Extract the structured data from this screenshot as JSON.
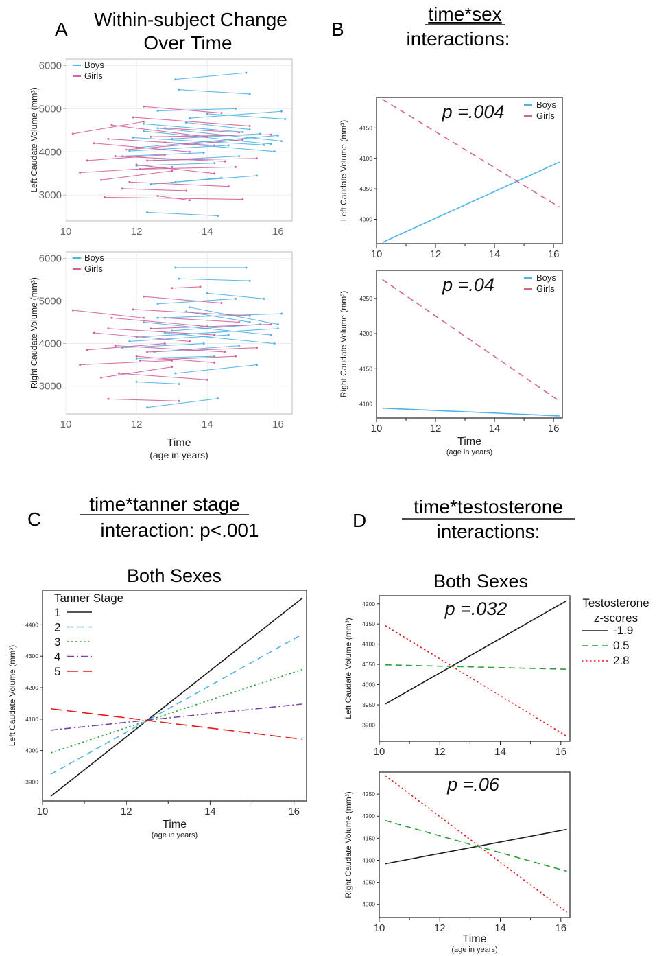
{
  "panels": {
    "A": {
      "letter": "A",
      "title_lines": [
        "Within-subject Change",
        "Over Time"
      ]
    },
    "B": {
      "letter": "B",
      "title_lines": [
        "time*sex",
        "interactions:"
      ]
    },
    "C": {
      "letter": "C",
      "title_lines": [
        "time*tanner stage",
        "interaction: p<.001"
      ],
      "subtitle": "Both Sexes"
    },
    "D": {
      "letter": "D",
      "title_lines": [
        "time*testosterone",
        "interactions:"
      ],
      "subtitle": "Both Sexes"
    }
  },
  "colors": {
    "boys": "#4fb3e8",
    "girls": "#d4629b",
    "black": "#1a1a1a",
    "blue": "#4fb3e8",
    "green": "#2e9e3a",
    "purple": "#7a3fa0",
    "red": "#e31b1b"
  },
  "chart_data": [
    {
      "id": "A-left",
      "type": "line",
      "ylabel": "Left Caudate Volume (mm³)",
      "xlim": [
        10,
        16.4
      ],
      "ylim": [
        2400,
        6150
      ],
      "xticks": [
        10,
        12,
        14,
        16
      ],
      "yticks": [
        3000,
        4000,
        5000,
        6000
      ],
      "legend": {
        "placement": "top-left",
        "entries": [
          "Boys",
          "Girls"
        ]
      },
      "grid": true,
      "series": [
        {
          "name": "Boys",
          "segments": [
            [
              13.1,
              5680,
              15.1,
              5830
            ],
            [
              13.2,
              5440,
              15.2,
              5340
            ],
            [
              12.3,
              2600,
              14.3,
              2520
            ],
            [
              12.4,
              3250,
              14.4,
              3400
            ],
            [
              12.6,
              4950,
              14.8,
              5000
            ],
            [
              13.0,
              4300,
              15.5,
              4420
            ],
            [
              12.0,
              4100,
              16.0,
              4380
            ],
            [
              12.2,
              4480,
              15.8,
              4180
            ],
            [
              11.8,
              4020,
              14.6,
              4150
            ],
            [
              12.6,
              4550,
              16.1,
              4250
            ],
            [
              13.4,
              4680,
              15.2,
              4520
            ],
            [
              11.6,
              3900,
              13.9,
              3980
            ],
            [
              12.8,
              4220,
              15.9,
              4010
            ],
            [
              13.5,
              4780,
              16.1,
              4940
            ],
            [
              12.0,
              3680,
              14.2,
              3740
            ],
            [
              12.5,
              3800,
              14.9,
              3900
            ],
            [
              13.1,
              3300,
              15.4,
              3450
            ],
            [
              12.2,
              4650,
              15.0,
              4460
            ],
            [
              11.9,
              4330,
              15.6,
              4160
            ],
            [
              14.0,
              4880,
              16.2,
              4760
            ]
          ]
        },
        {
          "name": "Girls",
          "segments": [
            [
              10.2,
              4420,
              12.2,
              4700
            ],
            [
              10.4,
              3520,
              13.0,
              3650
            ],
            [
              10.8,
              4200,
              13.5,
              4000
            ],
            [
              11.0,
              3350,
              13.0,
              3560
            ],
            [
              11.1,
              2950,
              15.0,
              2900
            ],
            [
              11.3,
              4620,
              14.0,
              4350
            ],
            [
              11.4,
              3900,
              14.5,
              3780
            ],
            [
              11.6,
              3150,
              13.4,
              3100
            ],
            [
              11.7,
              4050,
              15.0,
              4280
            ],
            [
              11.9,
              4800,
              15.2,
              4600
            ],
            [
              12.0,
              3700,
              14.2,
              3500
            ],
            [
              12.2,
              5050,
              14.4,
              4900
            ],
            [
              12.4,
              4350,
              15.8,
              4400
            ],
            [
              12.6,
              2980,
              13.5,
              2880
            ],
            [
              12.1,
              3600,
              14.8,
              3650
            ],
            [
              11.8,
              3300,
              14.6,
              3200
            ],
            [
              12.3,
              3800,
              15.4,
              3850
            ],
            [
              10.6,
              3800,
              12.8,
              3930
            ],
            [
              11.2,
              4300,
              14.2,
              4150
            ],
            [
              12.8,
              4550,
              14.9,
              4450
            ]
          ]
        }
      ]
    },
    {
      "id": "A-right",
      "type": "line",
      "ylabel": "Right Caudate Volume (mm³)",
      "xlabel": "Time",
      "xlabel2": "(age in years)",
      "xlim": [
        10,
        16.4
      ],
      "ylim": [
        2350,
        6150
      ],
      "xticks": [
        10,
        12,
        14,
        16
      ],
      "yticks": [
        3000,
        4000,
        5000,
        6000
      ],
      "legend": {
        "placement": "top-left",
        "entries": [
          "Boys",
          "Girls"
        ]
      },
      "grid": true,
      "series": [
        {
          "name": "Boys",
          "segments": [
            [
              13.1,
              5780,
              15.1,
              5780
            ],
            [
              13.2,
              5520,
              15.2,
              5470
            ],
            [
              12.3,
              2500,
              14.3,
              2710
            ],
            [
              12.0,
              3100,
              13.2,
              3050
            ],
            [
              12.6,
              4930,
              14.8,
              5050
            ],
            [
              13.0,
              4300,
              15.5,
              4450
            ],
            [
              12.0,
              4150,
              16.0,
              4350
            ],
            [
              12.2,
              4500,
              15.8,
              4200
            ],
            [
              11.8,
              4050,
              14.6,
              4200
            ],
            [
              12.6,
              4600,
              16.1,
              4700
            ],
            [
              13.4,
              4750,
              15.2,
              4500
            ],
            [
              11.6,
              3900,
              13.9,
              4000
            ],
            [
              12.8,
              4250,
              15.9,
              4000
            ],
            [
              13.5,
              4850,
              16.0,
              4450
            ],
            [
              12.0,
              3650,
              14.2,
              3700
            ],
            [
              12.5,
              3800,
              14.9,
              3950
            ],
            [
              13.1,
              3300,
              15.4,
              3500
            ],
            [
              14.0,
              5180,
              15.6,
              5050
            ]
          ]
        },
        {
          "name": "Girls",
          "segments": [
            [
              10.2,
              4780,
              12.2,
              4600
            ],
            [
              10.4,
              3500,
              13.0,
              3600
            ],
            [
              10.8,
              4250,
              13.5,
              4050
            ],
            [
              11.0,
              3200,
              13.0,
              3450
            ],
            [
              11.2,
              2700,
              13.2,
              2650
            ],
            [
              11.3,
              4600,
              14.0,
              4400
            ],
            [
              11.4,
              3950,
              14.5,
              3800
            ],
            [
              11.9,
              4800,
              15.2,
              4650
            ],
            [
              12.0,
              3700,
              14.2,
              3550
            ],
            [
              12.2,
              5100,
              14.4,
              4950
            ],
            [
              12.4,
              4350,
              15.8,
              4450
            ],
            [
              12.1,
              3600,
              14.8,
              3700
            ],
            [
              12.3,
              3800,
              15.4,
              3900
            ],
            [
              13.0,
              5300,
              13.8,
              5330
            ],
            [
              10.6,
              3850,
              12.8,
              4000
            ],
            [
              11.2,
              4350,
              14.2,
              4200
            ],
            [
              12.8,
              4600,
              14.9,
              4500
            ],
            [
              11.5,
              3300,
              14.0,
              3150
            ]
          ]
        }
      ]
    },
    {
      "id": "B-top",
      "type": "line",
      "ylabel": "Left Caudate Volume (mm³)",
      "annotation": "p =.004",
      "xlim": [
        10,
        16.3
      ],
      "ylim": [
        3960,
        4200
      ],
      "xticks": [
        10,
        12,
        14,
        16
      ],
      "yticks": [
        4000,
        4050,
        4100,
        4150
      ],
      "legend": {
        "placement": "top-right",
        "entries": [
          "Boys",
          "Girls"
        ]
      },
      "series": [
        {
          "name": "Boys",
          "style": "solid",
          "x": [
            10.2,
            16.2
          ],
          "y": [
            3962,
            4094
          ]
        },
        {
          "name": "Girls",
          "style": "dashed",
          "x": [
            10.2,
            16.2
          ],
          "y": [
            4197,
            4020
          ]
        }
      ]
    },
    {
      "id": "B-bottom",
      "type": "line",
      "ylabel": "Right Caudate Volume (mm³)",
      "xlabel": "Time",
      "xlabel2": "(age in years)",
      "annotation": "p =.04",
      "xlim": [
        10,
        16.3
      ],
      "ylim": [
        4080,
        4290
      ],
      "xticks": [
        10,
        12,
        14,
        16
      ],
      "yticks": [
        4100,
        4150,
        4200,
        4250
      ],
      "legend": {
        "placement": "top-right",
        "entries": [
          "Boys",
          "Girls"
        ]
      },
      "series": [
        {
          "name": "Boys",
          "style": "solid",
          "x": [
            10.2,
            16.2
          ],
          "y": [
            4094,
            4083
          ]
        },
        {
          "name": "Girls",
          "style": "dashed",
          "x": [
            10.2,
            16.2
          ],
          "y": [
            4277,
            4104
          ]
        }
      ]
    },
    {
      "id": "C",
      "type": "line",
      "ylabel": "Left Caudate Volume (mm³)",
      "xlabel": "Time",
      "xlabel2": "(age in years)",
      "xlim": [
        10,
        16.3
      ],
      "ylim": [
        3840,
        4510
      ],
      "xticks": [
        10,
        12,
        14,
        16
      ],
      "yticks": [
        3900,
        4000,
        4100,
        4200,
        4300,
        4400
      ],
      "legend": {
        "placement": "top-left",
        "title": "Tanner Stage",
        "entries": [
          "1",
          "2",
          "3",
          "4",
          "5"
        ]
      },
      "series": [
        {
          "name": "1",
          "style": "solid",
          "color": "black",
          "x": [
            10.2,
            16.2
          ],
          "y": [
            3855,
            4485
          ]
        },
        {
          "name": "2",
          "style": "dashed",
          "color": "blue",
          "x": [
            10.2,
            16.2
          ],
          "y": [
            3925,
            4370
          ]
        },
        {
          "name": "3",
          "style": "dotted",
          "color": "green",
          "x": [
            10.2,
            16.2
          ],
          "y": [
            3993,
            4258
          ]
        },
        {
          "name": "4",
          "style": "dashdot",
          "color": "purple",
          "x": [
            10.2,
            16.2
          ],
          "y": [
            4065,
            4148
          ]
        },
        {
          "name": "5",
          "style": "longdash",
          "color": "red",
          "x": [
            10.2,
            16.2
          ],
          "y": [
            4133,
            4036
          ]
        }
      ]
    },
    {
      "id": "D-top",
      "type": "line",
      "ylabel": "Left Caudate Volume (mm³)",
      "annotation": "p =.032",
      "xlim": [
        10,
        16.3
      ],
      "ylim": [
        3860,
        4220
      ],
      "xticks": [
        10,
        12,
        14,
        16
      ],
      "yticks": [
        3900,
        3950,
        4000,
        4050,
        4100,
        4150,
        4200
      ],
      "legend": {
        "placement": "right-outside",
        "title_lines": [
          "Testosterone",
          "z-scores"
        ],
        "entries": [
          "-1.9",
          "0.5",
          "2.8"
        ]
      },
      "series": [
        {
          "name": "-1.9",
          "style": "solid",
          "color": "black",
          "x": [
            10.2,
            16.2
          ],
          "y": [
            3952,
            4208
          ]
        },
        {
          "name": "0.5",
          "style": "dashed",
          "color": "green",
          "x": [
            10.2,
            16.2
          ],
          "y": [
            4049,
            4038
          ]
        },
        {
          "name": "2.8",
          "style": "dotted",
          "color": "red",
          "x": [
            10.2,
            16.2
          ],
          "y": [
            4146,
            3872
          ]
        }
      ]
    },
    {
      "id": "D-bottom",
      "type": "line",
      "ylabel": "Right Caudate Volume (mm³)",
      "xlabel": "Time",
      "xlabel2": "(age in years)",
      "annotation": "p =.06",
      "xlim": [
        10,
        16.3
      ],
      "ylim": [
        3970,
        4300
      ],
      "xticks": [
        10,
        12,
        14,
        16
      ],
      "yticks": [
        4000,
        4050,
        4100,
        4150,
        4200,
        4250
      ],
      "series": [
        {
          "name": "-1.9",
          "style": "solid",
          "color": "black",
          "x": [
            10.2,
            16.2
          ],
          "y": [
            4092,
            4170
          ]
        },
        {
          "name": "0.5",
          "style": "dashed",
          "color": "green",
          "x": [
            10.2,
            16.2
          ],
          "y": [
            4190,
            4075
          ]
        },
        {
          "name": "2.8",
          "style": "dotted",
          "color": "red",
          "x": [
            10.2,
            16.2
          ],
          "y": [
            4292,
            3982
          ]
        }
      ]
    }
  ]
}
